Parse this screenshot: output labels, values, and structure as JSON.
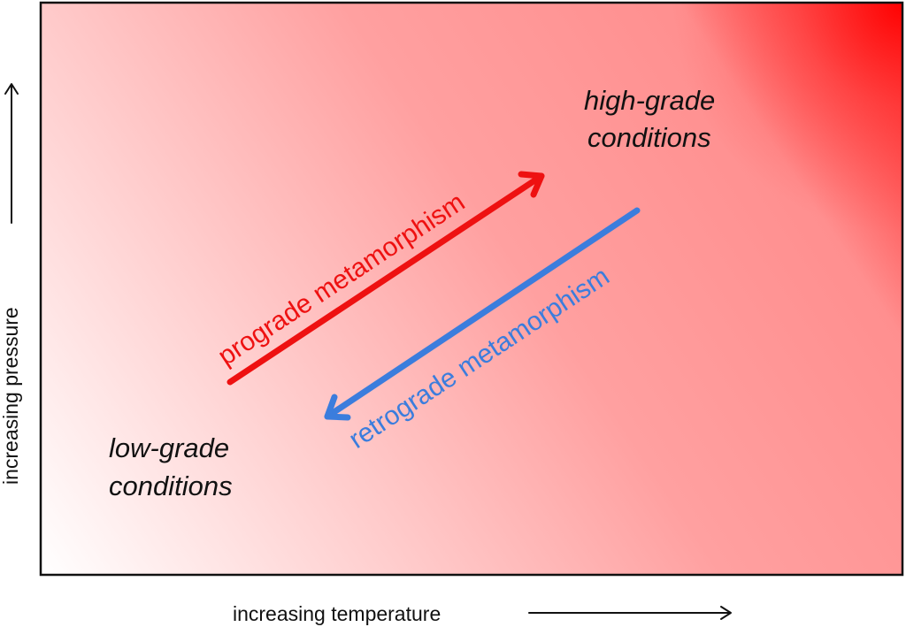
{
  "diagram": {
    "x_axis_label": "increasing temperature",
    "y_axis_label": "increasing pressure",
    "high_grade": {
      "line1": "high-grade",
      "line2": "conditions"
    },
    "low_grade": {
      "line1": "low-grade",
      "line2": "conditions"
    },
    "prograde_label": "prograde metamorphism",
    "retrograde_label": "retrograde metamorphism"
  },
  "colors": {
    "gradient_low": "#ffffff",
    "gradient_mid": "#ff8f8f",
    "gradient_high": "#ff1a1a",
    "prograde": "#ee1111",
    "retrograde": "#3b7ddd",
    "frame": "#111111",
    "text": "#111111"
  },
  "icons": {
    "x_axis_arrow": "right-arrow-icon",
    "y_axis_arrow": "up-arrow-icon"
  }
}
